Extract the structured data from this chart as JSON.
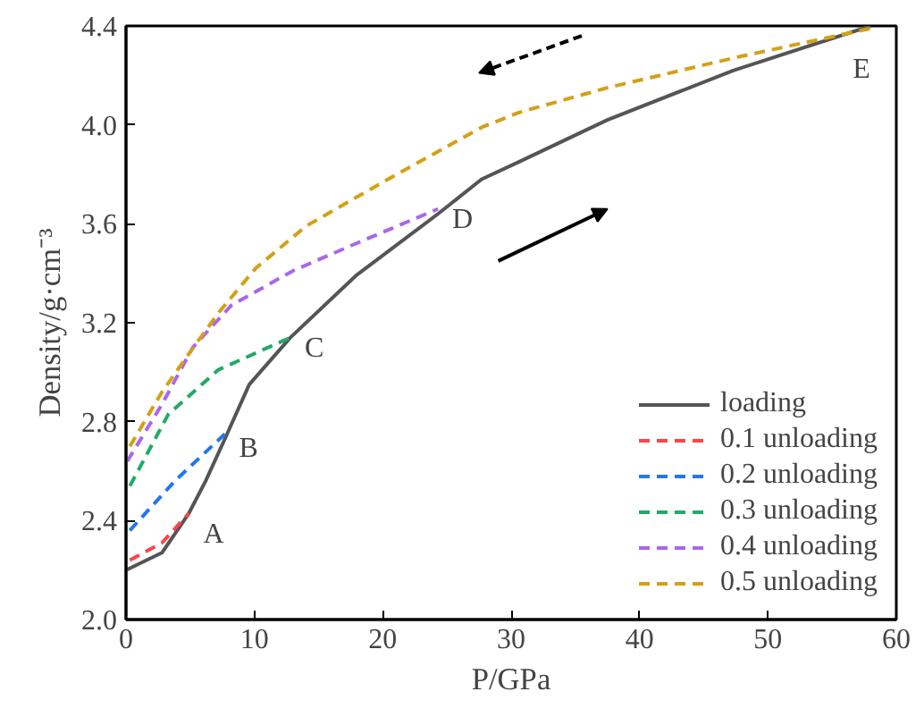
{
  "chart_data": {
    "type": "line",
    "xlabel": "P/GPa",
    "ylabel": "Density/g·cm⁻³",
    "xlim": [
      0,
      60
    ],
    "xticks": [
      0,
      10,
      20,
      30,
      40,
      50,
      60
    ],
    "ylim": [
      2.0,
      4.4
    ],
    "yticks": [
      {
        "value": 2,
        "label": "2.0"
      },
      2.4,
      2.8,
      3.2,
      3.6,
      {
        "value": 4,
        "label": "4.0"
      },
      4.4
    ],
    "grid": false,
    "legend": "bottom right",
    "series": [
      {
        "name": "loading",
        "color": "#555555",
        "line_style": "solid",
        "x": [
          0,
          2.8,
          4.9,
          6.2,
          7.7,
          9.6,
          12.8,
          17.9,
          24.3,
          27.7,
          30.6,
          37.5,
          47.3,
          58
        ],
        "values": [
          2.2,
          2.27,
          2.43,
          2.56,
          2.73,
          2.95,
          3.14,
          3.39,
          3.64,
          3.78,
          3.85,
          4.02,
          4.22,
          4.4
        ]
      },
      {
        "name": "0.1 unloading",
        "color": "#ff4444",
        "line_style": "dashed",
        "x": [
          0.3,
          2.8,
          4.9
        ],
        "values": [
          2.24,
          2.31,
          2.43
        ]
      },
      {
        "name": "0.2 unloading",
        "color": "#2277ee",
        "line_style": "dashed",
        "x": [
          0.3,
          3.8,
          7.7
        ],
        "values": [
          2.36,
          2.56,
          2.75
        ]
      },
      {
        "name": "0.3 unloading",
        "color": "#22aa66",
        "line_style": "dashed",
        "x": [
          0.3,
          3.3,
          7.2,
          12.8
        ],
        "values": [
          2.54,
          2.83,
          3.01,
          3.14
        ]
      },
      {
        "name": "0.4 unloading",
        "color": "#aa66ee",
        "line_style": "dashed",
        "x": [
          0.1,
          2.8,
          5.2,
          8.2,
          13,
          17.9,
          24.3
        ],
        "values": [
          2.64,
          2.87,
          3.1,
          3.27,
          3.41,
          3.52,
          3.66
        ]
      },
      {
        "name": "0.5 unloading",
        "color": "#d4a017",
        "line_style": "dashed",
        "x": [
          0.3,
          2.8,
          4.7,
          7.2,
          10.1,
          14,
          20.4,
          27.7,
          30.6,
          37.5,
          47.3,
          58
        ],
        "values": [
          2.7,
          2.92,
          3.06,
          3.24,
          3.42,
          3.59,
          3.78,
          3.99,
          4.05,
          4.15,
          4.27,
          4.39
        ]
      }
    ],
    "annotations": [
      {
        "text": "A",
        "x": 4.9,
        "y": 2.43
      },
      {
        "text": "B",
        "x": 7.7,
        "y": 2.75
      },
      {
        "text": "C",
        "x": 12.8,
        "y": 3.14
      },
      {
        "text": "D",
        "x": 24.3,
        "y": 3.66
      },
      {
        "text": "E",
        "x": 58,
        "y": 4.4
      }
    ]
  }
}
